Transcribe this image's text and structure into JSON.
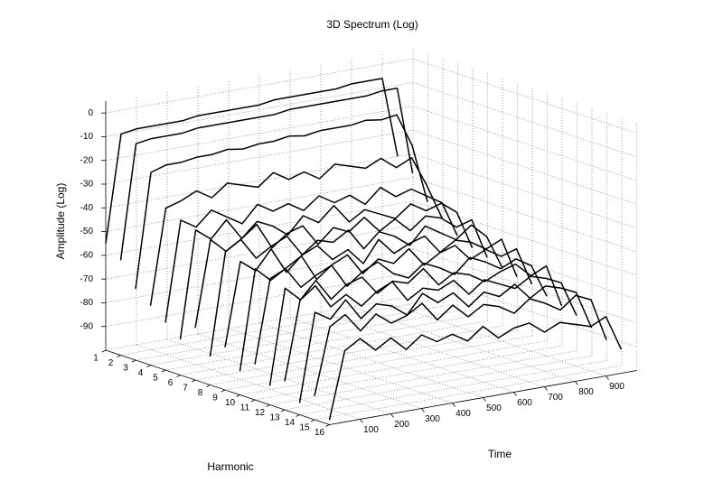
{
  "chart_data": {
    "type": "line3d",
    "title": "3D Spectrum (Log)",
    "x_label": "Time",
    "y_label": "Harmonic",
    "z_label": "Amplitude (Log)",
    "color": "#000000",
    "grid": true,
    "xlim": [
      0,
      1000
    ],
    "xticks": [
      100,
      200,
      300,
      400,
      500,
      600,
      700,
      800,
      900
    ],
    "ylim": [
      1,
      16
    ],
    "yticks": [
      1,
      2,
      3,
      4,
      5,
      6,
      7,
      8,
      9,
      10,
      11,
      12,
      13,
      14,
      15,
      16
    ],
    "zlim": [
      -100,
      5
    ],
    "zticks": [
      -90,
      -80,
      -70,
      -60,
      -50,
      -40,
      -30,
      -20,
      -10,
      0
    ],
    "x": [
      0,
      50,
      100,
      150,
      200,
      250,
      300,
      350,
      400,
      450,
      500,
      550,
      600,
      650,
      700,
      750,
      800,
      850,
      900,
      950
    ],
    "series": [
      {
        "harmonic": 1,
        "values": [
          -55,
          -10,
          -9,
          -9,
          -9,
          -9,
          -8,
          -8,
          -8,
          -8,
          -8,
          -7,
          -7,
          -7,
          -7,
          -7,
          -6,
          -6,
          -6,
          -40
        ]
      },
      {
        "harmonic": 2,
        "values": [
          -60,
          -12,
          -11,
          -11,
          -11,
          -10,
          -10,
          -10,
          -10,
          -10,
          -10,
          -9,
          -9,
          -9,
          -9,
          -9,
          -9,
          -8,
          -8,
          -45
        ]
      },
      {
        "harmonic": 3,
        "values": [
          -70,
          -22,
          -20,
          -20,
          -19,
          -19,
          -18,
          -19,
          -18,
          -18,
          -17,
          -18,
          -17,
          -17,
          -17,
          -16,
          -17,
          -16,
          -30,
          -55
        ]
      },
      {
        "harmonic": 4,
        "values": [
          -75,
          -35,
          -33,
          -30,
          -34,
          -29,
          -31,
          -33,
          -28,
          -32,
          -30,
          -34,
          -29,
          -31,
          -33,
          -30,
          -35,
          -32,
          -45,
          -60
        ]
      },
      {
        "harmonic": 5,
        "values": [
          -80,
          -38,
          -42,
          -36,
          -40,
          -44,
          -37,
          -41,
          -39,
          -43,
          -38,
          -42,
          -40,
          -45,
          -39,
          -44,
          -42,
          -46,
          -50,
          -65
        ]
      },
      {
        "harmonic": 6,
        "values": [
          -85,
          -40,
          -45,
          -38,
          -47,
          -41,
          -44,
          -49,
          -42,
          -46,
          -40,
          -48,
          -44,
          -47,
          -50,
          -45,
          -49,
          -47,
          -52,
          -68
        ]
      },
      {
        "harmonic": 7,
        "values": [
          -78,
          -42,
          -48,
          -44,
          -39,
          -50,
          -45,
          -43,
          -52,
          -46,
          -49,
          -44,
          -51,
          -47,
          -53,
          -48,
          -50,
          -55,
          -53,
          -70
        ]
      },
      {
        "harmonic": 8,
        "values": [
          -88,
          -45,
          -41,
          -50,
          -46,
          -43,
          -52,
          -47,
          -49,
          -45,
          -54,
          -48,
          -51,
          -56,
          -49,
          -53,
          -57,
          -52,
          -58,
          -72
        ]
      },
      {
        "harmonic": 9,
        "values": [
          -82,
          -47,
          -52,
          -44,
          -55,
          -49,
          -46,
          -53,
          -50,
          -57,
          -48,
          -55,
          -52,
          -50,
          -58,
          -54,
          -56,
          -60,
          -57,
          -74
        ]
      },
      {
        "harmonic": 10,
        "values": [
          -90,
          -48,
          -54,
          -50,
          -46,
          -57,
          -52,
          -49,
          -58,
          -53,
          -56,
          -51,
          -59,
          -55,
          -53,
          -60,
          -57,
          -61,
          -59,
          -75
        ]
      },
      {
        "harmonic": 11,
        "values": [
          -85,
          -50,
          -47,
          -56,
          -52,
          -49,
          -59,
          -54,
          -51,
          -57,
          -60,
          -55,
          -58,
          -62,
          -56,
          -59,
          -63,
          -60,
          -64,
          -78
        ]
      },
      {
        "harmonic": 12,
        "values": [
          -92,
          -52,
          -58,
          -51,
          -60,
          -55,
          -53,
          -61,
          -57,
          -59,
          -54,
          -62,
          -58,
          -60,
          -64,
          -61,
          -59,
          -65,
          -62,
          -80
        ]
      },
      {
        "harmonic": 13,
        "values": [
          -88,
          -55,
          -50,
          -60,
          -56,
          -62,
          -57,
          -54,
          -63,
          -59,
          -61,
          -58,
          -65,
          -60,
          -63,
          -66,
          -62,
          -64,
          -67,
          -82
        ]
      },
      {
        "harmonic": 14,
        "values": [
          -95,
          -58,
          -62,
          -55,
          -64,
          -59,
          -61,
          -66,
          -58,
          -63,
          -60,
          -67,
          -62,
          -65,
          -61,
          -68,
          -64,
          -66,
          -69,
          -85
        ]
      },
      {
        "harmonic": 15,
        "values": [
          -90,
          -62,
          -58,
          -66,
          -60,
          -65,
          -63,
          -59,
          -67,
          -62,
          -68,
          -64,
          -66,
          -70,
          -65,
          -68,
          -72,
          -67,
          -70,
          -88
        ]
      },
      {
        "harmonic": 16,
        "values": [
          -98,
          -70,
          -66,
          -72,
          -68,
          -74,
          -69,
          -73,
          -71,
          -75,
          -70,
          -76,
          -73,
          -72,
          -77,
          -74,
          -76,
          -78,
          -75,
          -90
        ]
      }
    ]
  }
}
